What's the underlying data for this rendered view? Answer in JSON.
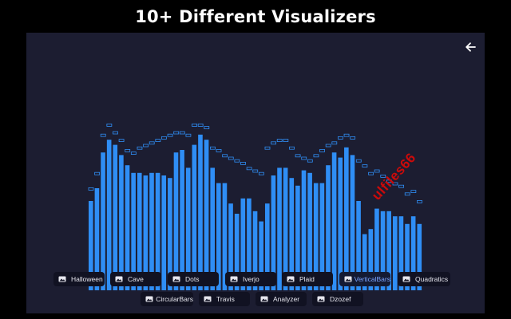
{
  "page": {
    "headline": "10+ Different Visualizers"
  },
  "icons": {
    "back": "arrow-left-icon",
    "chip": "image-icon"
  },
  "colors": {
    "bar": "#2f8ef5",
    "peak": "#2f8ef5",
    "stage_bg": "#1c1d31",
    "chip_bg": "#111222",
    "watermark": "#cc0a0a"
  },
  "visualizer": {
    "bars": [
      0.35,
      0.4,
      0.54,
      0.59,
      0.57,
      0.53,
      0.49,
      0.46,
      0.46,
      0.45,
      0.46,
      0.46,
      0.45,
      0.44,
      0.54,
      0.55,
      0.48,
      0.57,
      0.61,
      0.59,
      0.48,
      0.42,
      0.42,
      0.34,
      0.3,
      0.36,
      0.36,
      0.31,
      0.27,
      0.34,
      0.45,
      0.48,
      0.48,
      0.44,
      0.41,
      0.47,
      0.46,
      0.42,
      0.42,
      0.49,
      0.54,
      0.52,
      0.56,
      0.53,
      0.35,
      0.22,
      0.24,
      0.32,
      0.31,
      0.31,
      0.29,
      0.29,
      0.26,
      0.29,
      0.26
    ],
    "peaks": [
      0.38,
      0.44,
      0.59,
      0.63,
      0.6,
      0.57,
      0.53,
      0.52,
      0.54,
      0.55,
      0.56,
      0.57,
      0.58,
      0.59,
      0.6,
      0.6,
      0.59,
      0.63,
      0.63,
      0.62,
      0.54,
      0.53,
      0.51,
      0.5,
      0.49,
      0.48,
      0.46,
      0.45,
      0.44,
      0.54,
      0.56,
      0.57,
      0.57,
      0.54,
      0.51,
      0.5,
      0.49,
      0.51,
      0.53,
      0.55,
      0.56,
      0.58,
      0.59,
      0.58,
      0.49,
      0.47,
      0.44,
      0.45,
      0.43,
      0.41,
      0.4,
      0.39,
      0.36,
      0.37,
      0.33
    ]
  },
  "visualizers": {
    "row1": [
      {
        "label": "Halloween",
        "active": false
      },
      {
        "label": "Cave",
        "active": false
      },
      {
        "label": "Dots",
        "active": false
      },
      {
        "label": "Iverjo",
        "active": false
      },
      {
        "label": "Plaid",
        "active": false
      },
      {
        "label": "VerticalBars",
        "active": true
      },
      {
        "label": "Quadratics",
        "active": false
      }
    ],
    "row2": [
      {
        "label": "CircularBars",
        "active": false
      },
      {
        "label": "Travis",
        "active": false
      },
      {
        "label": "Analyzer",
        "active": false
      },
      {
        "label": "Dzozef",
        "active": false
      }
    ]
  },
  "watermark": {
    "text": "ulfiles66"
  }
}
